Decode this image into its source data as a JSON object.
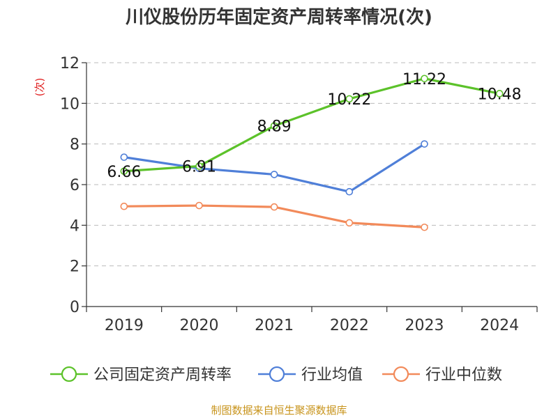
{
  "chart_data": {
    "type": "line",
    "title": "川仪股份历年固定资产周转率情况(次)",
    "ylabel": "(次)",
    "xlabel": "",
    "categories": [
      "2019",
      "2020",
      "2021",
      "2022",
      "2023",
      "2024"
    ],
    "ylim": [
      0,
      12
    ],
    "yticks": [
      0,
      2,
      4,
      6,
      8,
      10,
      12
    ],
    "grid": true,
    "legend": "bottom",
    "series": [
      {
        "name": "公司固定资产周转率",
        "color": "#5cc22a",
        "values": [
          6.66,
          6.91,
          8.89,
          10.22,
          11.22,
          10.48
        ],
        "labels": [
          "6.66",
          "6.91",
          "8.89",
          "10.22",
          "11.22",
          "10.48"
        ]
      },
      {
        "name": "行业均值",
        "color": "#4f7fd8",
        "values": [
          7.35,
          6.8,
          6.5,
          5.65,
          8.0,
          null
        ]
      },
      {
        "name": "行业中位数",
        "color": "#f28a5a",
        "values": [
          4.93,
          4.97,
          4.9,
          4.12,
          3.9,
          null
        ]
      }
    ],
    "source": "制图数据来自恒生聚源数据库"
  }
}
